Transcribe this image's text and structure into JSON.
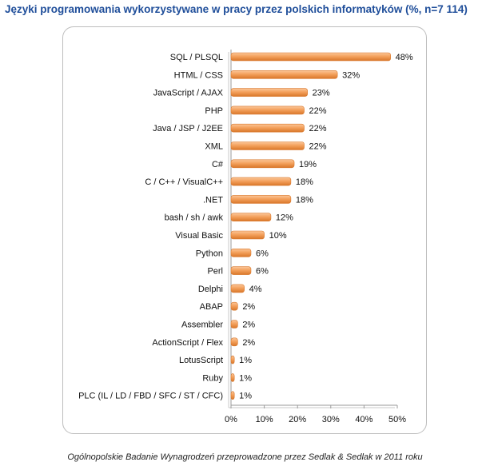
{
  "title": "Języki programowania wykorzystywane w pracy przez polskich informatyków (%, n=7 114)",
  "footer": "Ogólnopolskie Badanie Wynagrodzeń przeprowadzone przez Sedlak & Sedlak w 2011 roku",
  "colors": {
    "title": "#1f4e9a",
    "bar": "#f4a15d",
    "bar_dark": "#d9772a",
    "bar_light": "#fbc79a"
  },
  "chart_data": {
    "type": "bar",
    "orientation": "horizontal",
    "categories": [
      "SQL / PLSQL",
      "HTML / CSS",
      "JavaScript / AJAX",
      "PHP",
      "Java / JSP / J2EE",
      "XML",
      "C#",
      "C / C++ / VisualC++",
      ".NET",
      "bash / sh / awk",
      "Visual Basic",
      "Python",
      "Perl",
      "Delphi",
      "ABAP",
      "Assembler",
      "ActionScript / Flex",
      "LotusScript",
      "Ruby",
      "PLC (IL / LD / FBD / SFC / ST / CFC)"
    ],
    "values": [
      48,
      32,
      23,
      22,
      22,
      22,
      19,
      18,
      18,
      12,
      10,
      6,
      6,
      4,
      2,
      2,
      2,
      1,
      1,
      1
    ],
    "value_labels": [
      "48%",
      "32%",
      "23%",
      "22%",
      "22%",
      "22%",
      "19%",
      "18%",
      "18%",
      "12%",
      "10%",
      "6%",
      "6%",
      "4%",
      "2%",
      "2%",
      "2%",
      "1%",
      "1%",
      "1%"
    ],
    "xlim": [
      0,
      50
    ],
    "xticks": [
      0,
      10,
      20,
      30,
      40,
      50
    ],
    "xtick_labels": [
      "0%",
      "10%",
      "20%",
      "30%",
      "40%",
      "50%"
    ],
    "grid": false,
    "legend": "none"
  }
}
